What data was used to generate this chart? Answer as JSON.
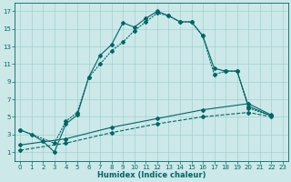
{
  "xlabel": "Humidex (Indice chaleur)",
  "background_color": "#cce8e8",
  "grid_color": "#99cccc",
  "line_color": "#006666",
  "xlim": [
    -0.5,
    23.5
  ],
  "ylim": [
    0,
    18
  ],
  "xticks": [
    0,
    1,
    2,
    3,
    4,
    5,
    6,
    7,
    8,
    9,
    10,
    11,
    12,
    13,
    14,
    15,
    16,
    17,
    18,
    19,
    20,
    21,
    22,
    23
  ],
  "yticks": [
    1,
    3,
    5,
    7,
    9,
    11,
    13,
    15,
    17
  ],
  "line1_x": [
    0,
    1,
    2,
    3,
    4,
    5,
    6,
    7,
    8,
    9,
    10,
    11,
    12,
    13,
    14,
    15,
    16,
    17,
    18,
    19,
    20,
    22
  ],
  "line1_y": [
    3.5,
    3.0,
    2.2,
    1.0,
    4.2,
    5.2,
    9.5,
    12.0,
    13.2,
    15.7,
    15.2,
    16.2,
    17.0,
    16.5,
    15.8,
    15.8,
    14.2,
    10.5,
    10.2,
    10.2,
    6.2,
    5.1
  ],
  "line2_x": [
    0,
    3,
    4,
    5,
    6,
    7,
    8,
    9,
    10,
    11,
    12,
    13,
    14,
    15,
    16,
    17,
    18,
    19,
    20,
    22
  ],
  "line2_y": [
    3.5,
    2.0,
    4.5,
    5.5,
    9.5,
    11.0,
    12.5,
    13.5,
    14.8,
    15.8,
    16.8,
    16.5,
    15.8,
    15.8,
    14.2,
    9.8,
    10.2,
    10.2,
    6.0,
    5.1
  ],
  "line3_x": [
    0,
    4,
    8,
    12,
    16,
    20,
    22
  ],
  "line3_y": [
    1.8,
    2.5,
    3.8,
    4.8,
    5.8,
    6.5,
    5.2
  ],
  "line4_x": [
    0,
    4,
    8,
    12,
    16,
    20,
    22
  ],
  "line4_y": [
    1.2,
    2.0,
    3.2,
    4.2,
    5.0,
    5.5,
    5.0
  ],
  "marker_size": 2.0,
  "linewidth": 0.8,
  "tick_fontsize": 5,
  "xlabel_fontsize": 6
}
